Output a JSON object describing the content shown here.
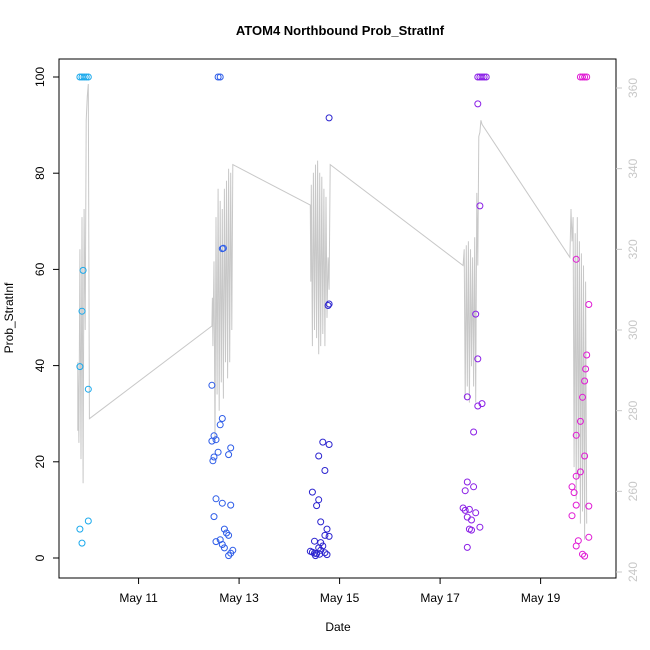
{
  "chart_data": {
    "type": "scatter",
    "title": "ATOM4 Northbound Prob_StratInf",
    "xlabel": "Date",
    "ylabel": "Prob_StratInf",
    "ylim": [
      0,
      100
    ],
    "y2lim": [
      240,
      360
    ],
    "xlim": [
      "2014-05-09T10:00",
      "2014-05-20T12:00"
    ],
    "x_ticks": [
      {
        "x": "2014-05-11T00:00",
        "label": "May 11"
      },
      {
        "x": "2014-05-13T00:00",
        "label": "May 13"
      },
      {
        "x": "2014-05-15T00:00",
        "label": "May 15"
      },
      {
        "x": "2014-05-17T00:00",
        "label": "May 17"
      },
      {
        "x": "2014-05-19T00:00",
        "label": "May 19"
      }
    ],
    "y_ticks": [
      0,
      20,
      40,
      60,
      80,
      100
    ],
    "y2_ticks": [
      240,
      260,
      280,
      300,
      320,
      340,
      360
    ],
    "grid": false,
    "legend": "none",
    "line_color": "#c8c8c8",
    "series": [
      {
        "color": "#1aa9ec",
        "points": [
          [
            "2014-05-09T20:00",
            100
          ],
          [
            "2014-05-09T21:00",
            100
          ],
          [
            "2014-05-09T22:00",
            100
          ],
          [
            "2014-05-09T23:00",
            100
          ],
          [
            "2014-05-10T00:00",
            100
          ],
          [
            "2014-05-09T21:30",
            59.8
          ],
          [
            "2014-05-09T21:00",
            51.3
          ],
          [
            "2014-05-09T20:00",
            39.8
          ],
          [
            "2014-05-10T00:00",
            35.1
          ],
          [
            "2014-05-10T00:00",
            7.7
          ],
          [
            "2014-05-09T20:00",
            6.0
          ],
          [
            "2014-05-09T21:00",
            3.1
          ]
        ]
      },
      {
        "color": "#2d5ce8",
        "points": [
          [
            "2014-05-12T14:00",
            100
          ],
          [
            "2014-05-12T15:00",
            100
          ],
          [
            "2014-05-12T16:30",
            64.4
          ],
          [
            "2014-05-12T16:00",
            64.3
          ],
          [
            "2014-05-12T11:00",
            35.9
          ],
          [
            "2014-05-12T16:00",
            29.0
          ],
          [
            "2014-05-12T15:00",
            27.7
          ],
          [
            "2014-05-12T12:00",
            25.4
          ],
          [
            "2014-05-12T11:00",
            24.3
          ],
          [
            "2014-05-12T13:00",
            24.6
          ],
          [
            "2014-05-12T20:00",
            22.9
          ],
          [
            "2014-05-12T14:00",
            22.0
          ],
          [
            "2014-05-12T19:00",
            21.5
          ],
          [
            "2014-05-12T12:00",
            21.0
          ],
          [
            "2014-05-12T11:30",
            20.2
          ],
          [
            "2014-05-12T13:00",
            12.3
          ],
          [
            "2014-05-12T16:00",
            11.4
          ],
          [
            "2014-05-12T20:00",
            11.0
          ],
          [
            "2014-05-12T12:00",
            8.6
          ],
          [
            "2014-05-12T17:00",
            6.0
          ],
          [
            "2014-05-12T18:00",
            5.2
          ],
          [
            "2014-05-12T19:00",
            4.7
          ],
          [
            "2014-05-12T15:00",
            3.8
          ],
          [
            "2014-05-12T13:00",
            3.4
          ],
          [
            "2014-05-12T16:00",
            2.8
          ],
          [
            "2014-05-12T17:00",
            2.1
          ],
          [
            "2014-05-12T21:00",
            1.6
          ],
          [
            "2014-05-12T20:00",
            1.0
          ],
          [
            "2014-05-12T19:00",
            0.5
          ]
        ]
      },
      {
        "color": "#2a22cf",
        "points": [
          [
            "2014-05-14T19:00",
            91.5
          ],
          [
            "2014-05-14T19:00",
            52.8
          ],
          [
            "2014-05-14T18:30",
            52.5
          ],
          [
            "2014-05-14T16:00",
            24.1
          ],
          [
            "2014-05-14T19:00",
            23.6
          ],
          [
            "2014-05-14T14:00",
            21.2
          ],
          [
            "2014-05-14T17:00",
            18.2
          ],
          [
            "2014-05-14T11:00",
            13.7
          ],
          [
            "2014-05-14T14:00",
            12.1
          ],
          [
            "2014-05-14T13:00",
            10.9
          ],
          [
            "2014-05-14T15:00",
            7.5
          ],
          [
            "2014-05-14T18:00",
            6.0
          ],
          [
            "2014-05-14T17:00",
            4.7
          ],
          [
            "2014-05-14T19:00",
            4.5
          ],
          [
            "2014-05-14T12:00",
            3.5
          ],
          [
            "2014-05-14T15:00",
            3.2
          ],
          [
            "2014-05-14T16:00",
            2.5
          ],
          [
            "2014-05-14T14:00",
            2.1
          ],
          [
            "2014-05-14T10:00",
            1.4
          ],
          [
            "2014-05-14T11:00",
            1.2
          ],
          [
            "2014-05-14T12:00",
            1.0
          ],
          [
            "2014-05-14T13:00",
            0.9
          ],
          [
            "2014-05-14T15:00",
            1.6
          ],
          [
            "2014-05-14T17:00",
            1.1
          ],
          [
            "2014-05-14T18:00",
            0.7
          ],
          [
            "2014-05-14T12:30",
            0.5
          ],
          [
            "2014-05-14T14:30",
            0.8
          ]
        ]
      },
      {
        "color": "#8a1ee6",
        "points": [
          [
            "2014-05-17T18:00",
            100
          ],
          [
            "2014-05-17T19:00",
            100
          ],
          [
            "2014-05-17T20:00",
            100
          ],
          [
            "2014-05-17T21:00",
            100
          ],
          [
            "2014-05-17T22:00",
            100
          ],
          [
            "2014-05-17T18:00",
            94.4
          ],
          [
            "2014-05-17T19:00",
            73.2
          ],
          [
            "2014-05-17T17:00",
            50.7
          ],
          [
            "2014-05-17T18:00",
            41.4
          ],
          [
            "2014-05-17T13:00",
            33.5
          ],
          [
            "2014-05-17T20:00",
            32.1
          ],
          [
            "2014-05-17T18:00",
            31.6
          ],
          [
            "2014-05-17T16:00",
            26.2
          ],
          [
            "2014-05-17T13:00",
            15.8
          ],
          [
            "2014-05-17T16:00",
            14.8
          ],
          [
            "2014-05-17T12:00",
            14.0
          ],
          [
            "2014-05-17T11:00",
            10.4
          ],
          [
            "2014-05-17T14:00",
            10.1
          ],
          [
            "2014-05-17T17:00",
            9.4
          ],
          [
            "2014-05-17T12:00",
            9.9
          ],
          [
            "2014-05-17T13:00",
            8.5
          ],
          [
            "2014-05-17T15:00",
            7.9
          ],
          [
            "2014-05-17T19:00",
            6.4
          ],
          [
            "2014-05-17T14:00",
            6.0
          ],
          [
            "2014-05-17T15:00",
            5.8
          ],
          [
            "2014-05-17T13:00",
            2.2
          ]
        ]
      },
      {
        "color": "#e01ad4",
        "points": [
          [
            "2014-05-19T19:00",
            100
          ],
          [
            "2014-05-19T20:00",
            100
          ],
          [
            "2014-05-19T21:00",
            100
          ],
          [
            "2014-05-19T22:00",
            100
          ],
          [
            "2014-05-19T17:00",
            62.1
          ],
          [
            "2014-05-19T23:00",
            52.7
          ],
          [
            "2014-05-19T22:00",
            42.2
          ],
          [
            "2014-05-19T21:30",
            39.3
          ],
          [
            "2014-05-19T21:00",
            36.8
          ],
          [
            "2014-05-19T20:00",
            33.4
          ],
          [
            "2014-05-19T19:00",
            28.4
          ],
          [
            "2014-05-19T17:00",
            25.5
          ],
          [
            "2014-05-19T21:00",
            21.2
          ],
          [
            "2014-05-19T19:00",
            17.9
          ],
          [
            "2014-05-19T17:00",
            17.0
          ],
          [
            "2014-05-19T15:00",
            14.8
          ],
          [
            "2014-05-19T16:00",
            13.6
          ],
          [
            "2014-05-19T17:00",
            11.0
          ],
          [
            "2014-05-19T23:00",
            10.8
          ],
          [
            "2014-05-19T15:00",
            8.8
          ],
          [
            "2014-05-19T23:00",
            4.3
          ],
          [
            "2014-05-19T18:00",
            3.6
          ],
          [
            "2014-05-19T17:00",
            2.5
          ],
          [
            "2014-05-19T20:00",
            0.8
          ],
          [
            "2014-05-19T21:00",
            0.4
          ]
        ]
      }
    ],
    "line": [
      [
        "2014-05-09T19:00",
        275
      ],
      [
        "2014-05-09T19:00",
        292
      ],
      [
        "2014-05-09T19:30",
        272
      ],
      [
        "2014-05-09T20:00",
        320
      ],
      [
        "2014-05-09T20:30",
        268
      ],
      [
        "2014-05-09T21:00",
        328
      ],
      [
        "2014-05-09T21:30",
        262
      ],
      [
        "2014-05-09T22:00",
        330
      ],
      [
        "2014-05-09T22:30",
        300
      ],
      [
        "2014-05-09T23:00",
        352
      ],
      [
        "2014-05-09T23:30",
        358
      ],
      [
        "2014-05-10T00:00",
        361
      ],
      [
        "2014-05-10T00:30",
        278
      ],
      [
        "2014-05-12T11:00",
        301
      ],
      [
        "2014-05-12T11:15",
        308
      ],
      [
        "2014-05-12T11:30",
        296
      ],
      [
        "2014-05-12T12:00",
        317
      ],
      [
        "2014-05-12T12:30",
        272
      ],
      [
        "2014-05-12T13:00",
        328
      ],
      [
        "2014-05-12T13:30",
        284
      ],
      [
        "2014-05-12T14:00",
        335
      ],
      [
        "2014-05-12T14:30",
        280
      ],
      [
        "2014-05-12T15:00",
        332
      ],
      [
        "2014-05-12T15:30",
        287
      ],
      [
        "2014-05-12T16:00",
        330
      ],
      [
        "2014-05-12T16:30",
        283
      ],
      [
        "2014-05-12T17:00",
        335
      ],
      [
        "2014-05-12T17:30",
        292
      ],
      [
        "2014-05-12T18:00",
        337
      ],
      [
        "2014-05-12T18:30",
        288
      ],
      [
        "2014-05-12T19:00",
        340
      ],
      [
        "2014-05-12T19:30",
        292
      ],
      [
        "2014-05-12T20:00",
        339
      ],
      [
        "2014-05-12T20:30",
        300
      ],
      [
        "2014-05-12T21:00",
        341
      ],
      [
        "2014-05-14T10:00",
        331
      ],
      [
        "2014-05-14T10:15",
        312
      ],
      [
        "2014-05-14T10:30",
        336
      ],
      [
        "2014-05-14T11:00",
        296
      ],
      [
        "2014-05-14T11:30",
        339
      ],
      [
        "2014-05-14T12:00",
        300
      ],
      [
        "2014-05-14T12:30",
        341
      ],
      [
        "2014-05-14T13:00",
        298
      ],
      [
        "2014-05-14T13:30",
        342
      ],
      [
        "2014-05-14T14:00",
        294
      ],
      [
        "2014-05-14T14:30",
        339
      ],
      [
        "2014-05-14T15:00",
        296
      ],
      [
        "2014-05-14T15:30",
        338
      ],
      [
        "2014-05-14T16:00",
        299
      ],
      [
        "2014-05-14T16:30",
        335
      ],
      [
        "2014-05-14T17:00",
        296
      ],
      [
        "2014-05-14T17:30",
        333
      ],
      [
        "2014-05-14T18:00",
        303
      ],
      [
        "2014-05-14T18:30",
        318
      ],
      [
        "2014-05-14T19:00",
        310
      ],
      [
        "2014-05-14T19:30",
        341
      ],
      [
        "2014-05-17T11:00",
        316
      ],
      [
        "2014-05-17T11:30",
        320
      ],
      [
        "2014-05-17T12:00",
        283
      ],
      [
        "2014-05-17T12:30",
        321
      ],
      [
        "2014-05-17T13:00",
        286
      ],
      [
        "2014-05-17T13:30",
        322
      ],
      [
        "2014-05-17T14:00",
        282
      ],
      [
        "2014-05-17T14:30",
        320
      ],
      [
        "2014-05-17T15:00",
        291
      ],
      [
        "2014-05-17T15:30",
        318
      ],
      [
        "2014-05-17T16:00",
        286
      ],
      [
        "2014-05-17T16:30",
        323
      ],
      [
        "2014-05-17T17:00",
        282
      ],
      [
        "2014-05-17T17:30",
        334
      ],
      [
        "2014-05-17T18:00",
        316
      ],
      [
        "2014-05-17T18:30",
        348
      ],
      [
        "2014-05-17T19:00",
        349
      ],
      [
        "2014-05-17T19:30",
        352
      ],
      [
        "2014-05-17T20:00",
        351
      ],
      [
        "2014-05-19T14:00",
        318
      ],
      [
        "2014-05-19T14:30",
        330
      ],
      [
        "2014-05-19T15:00",
        322
      ],
      [
        "2014-05-19T15:30",
        328
      ],
      [
        "2014-05-19T16:00",
        266
      ],
      [
        "2014-05-19T16:30",
        324
      ],
      [
        "2014-05-19T17:00",
        258
      ],
      [
        "2014-05-19T17:30",
        328
      ],
      [
        "2014-05-19T18:00",
        263
      ],
      [
        "2014-05-19T18:30",
        322
      ],
      [
        "2014-05-19T19:00",
        252
      ],
      [
        "2014-05-19T19:30",
        319
      ],
      [
        "2014-05-19T20:00",
        255
      ],
      [
        "2014-05-19T20:30",
        316
      ],
      [
        "2014-05-19T21:00",
        248
      ],
      [
        "2014-05-19T21:30",
        312
      ],
      [
        "2014-05-19T22:00",
        252
      ]
    ]
  }
}
